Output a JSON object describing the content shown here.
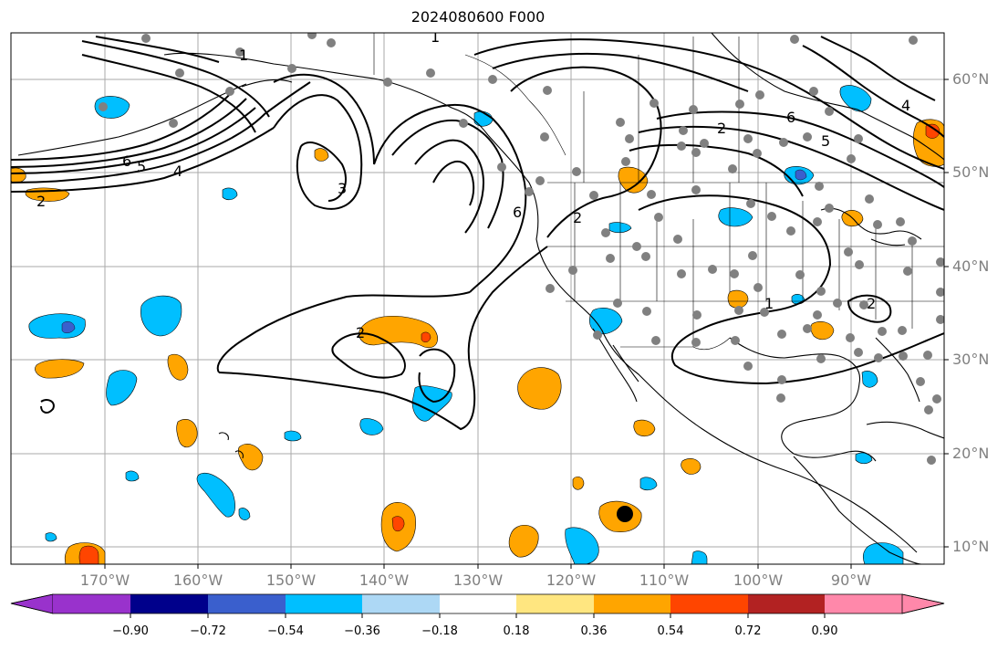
{
  "title": "2024080600 F000",
  "lat_labels": [
    "60°N",
    "50°N",
    "40°N",
    "30°N",
    "20°N",
    "10°N"
  ],
  "lon_labels": [
    "170°W",
    "160°W",
    "150°W",
    "140°W",
    "130°W",
    "120°W",
    "110°W",
    "100°W",
    "90°W"
  ],
  "colorbar": {
    "ticks": [
      "−0.90",
      "−0.72",
      "−0.54",
      "−0.36",
      "−0.18",
      "0.18",
      "0.36",
      "0.54",
      "0.72",
      "0.90"
    ],
    "colors": [
      "#9932cc",
      "#00008b",
      "#3a5fcd",
      "#00bfff",
      "#add8f5",
      "#ffffff",
      "#ffe680",
      "#ffa500",
      "#ff4500",
      "#b22222",
      "#ff88aa"
    ]
  },
  "contour_labels": [
    "1",
    "2",
    "3",
    "4",
    "5",
    "6"
  ],
  "colors": {
    "orange": "#ffa500",
    "cyan": "#00bfff",
    "red": "#ff4500",
    "station": "#808080"
  }
}
